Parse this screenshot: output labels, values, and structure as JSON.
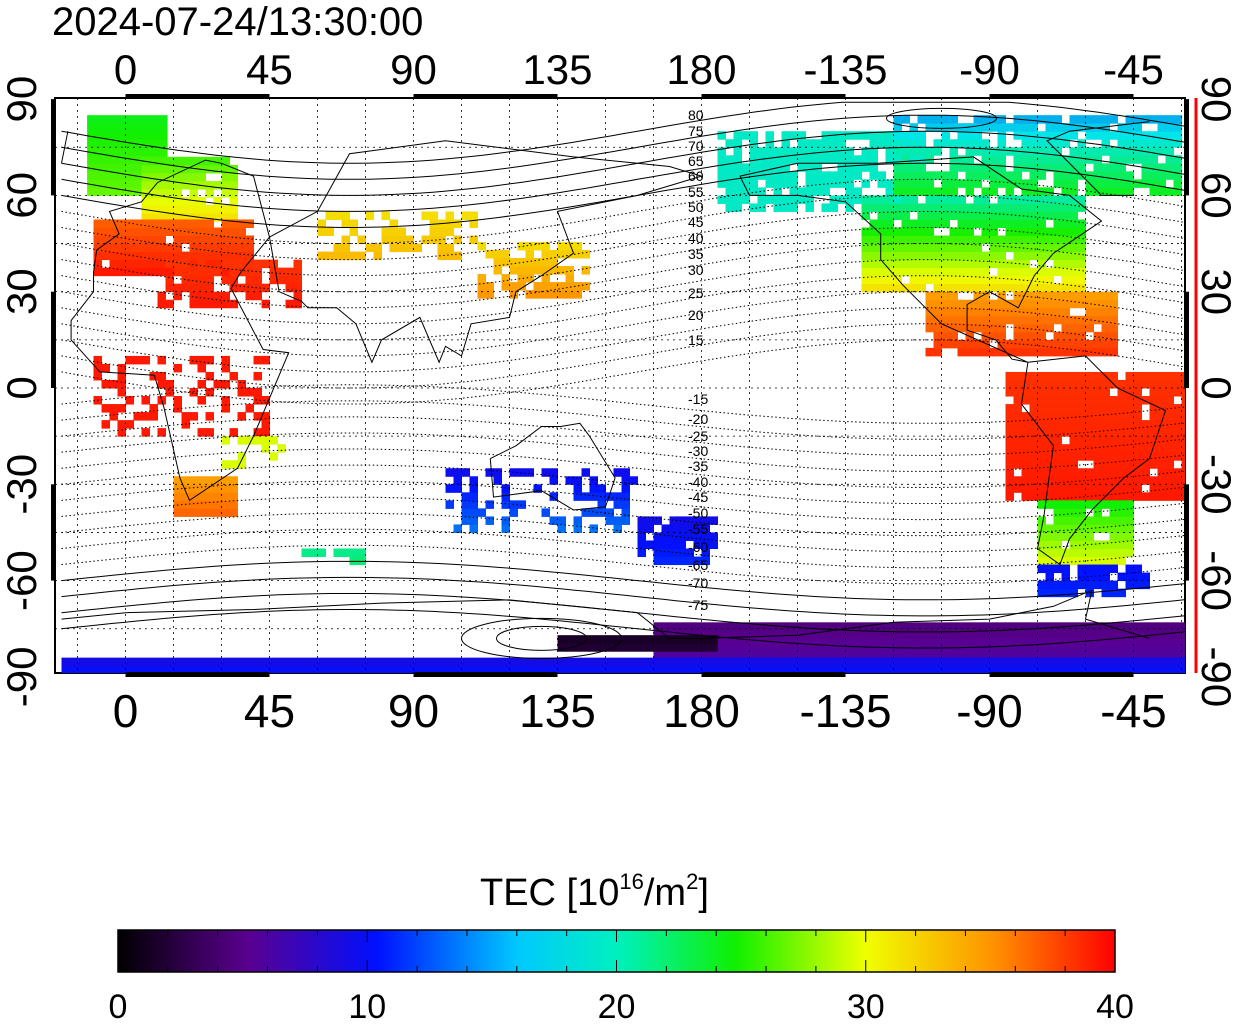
{
  "timestamp": "2024-07-24/13:30:00",
  "colors": {
    "frame": "#000000",
    "grid": "#000000",
    "right_axis_accent": "#ff0000",
    "background": "#ffffff"
  },
  "map": {
    "top_lon_labels": [
      "0",
      "45",
      "90",
      "135",
      "180",
      "-135",
      "-90",
      "-45"
    ],
    "bottom_lon_labels": [
      "0",
      "45",
      "90",
      "135",
      "180",
      "-135",
      "-90",
      "-45"
    ],
    "left_lat_labels": [
      "90",
      "60",
      "30",
      "0",
      "-30",
      "-60",
      "-90"
    ],
    "right_lat_labels": [
      "90",
      "60",
      "30",
      "0",
      "-30",
      "-60",
      "-90"
    ],
    "contour_labels_north": [
      "80",
      "75",
      "70",
      "65",
      "60",
      "55",
      "50",
      "45",
      "40",
      "35",
      "30",
      "25",
      "20",
      "15"
    ],
    "contour_labels_south": [
      "-15",
      "-20",
      "-25",
      "-30",
      "-35",
      "-40",
      "-45",
      "-50",
      "-55",
      "-60",
      "-65",
      "-70",
      "-75"
    ]
  },
  "colorbar": {
    "title_main": "TEC  [10",
    "title_exp1": "16",
    "title_mid": "/m",
    "title_exp2": "2",
    "title_end": "]",
    "min": 0,
    "max": 40,
    "tick_labels": [
      "0",
      "10",
      "20",
      "30",
      "40"
    ],
    "stops": [
      "#000000",
      "#5a0090",
      "#0010ff",
      "#00e8e8",
      "#10f000",
      "#f0ff00",
      "#ff9000",
      "#ff0000"
    ]
  }
}
